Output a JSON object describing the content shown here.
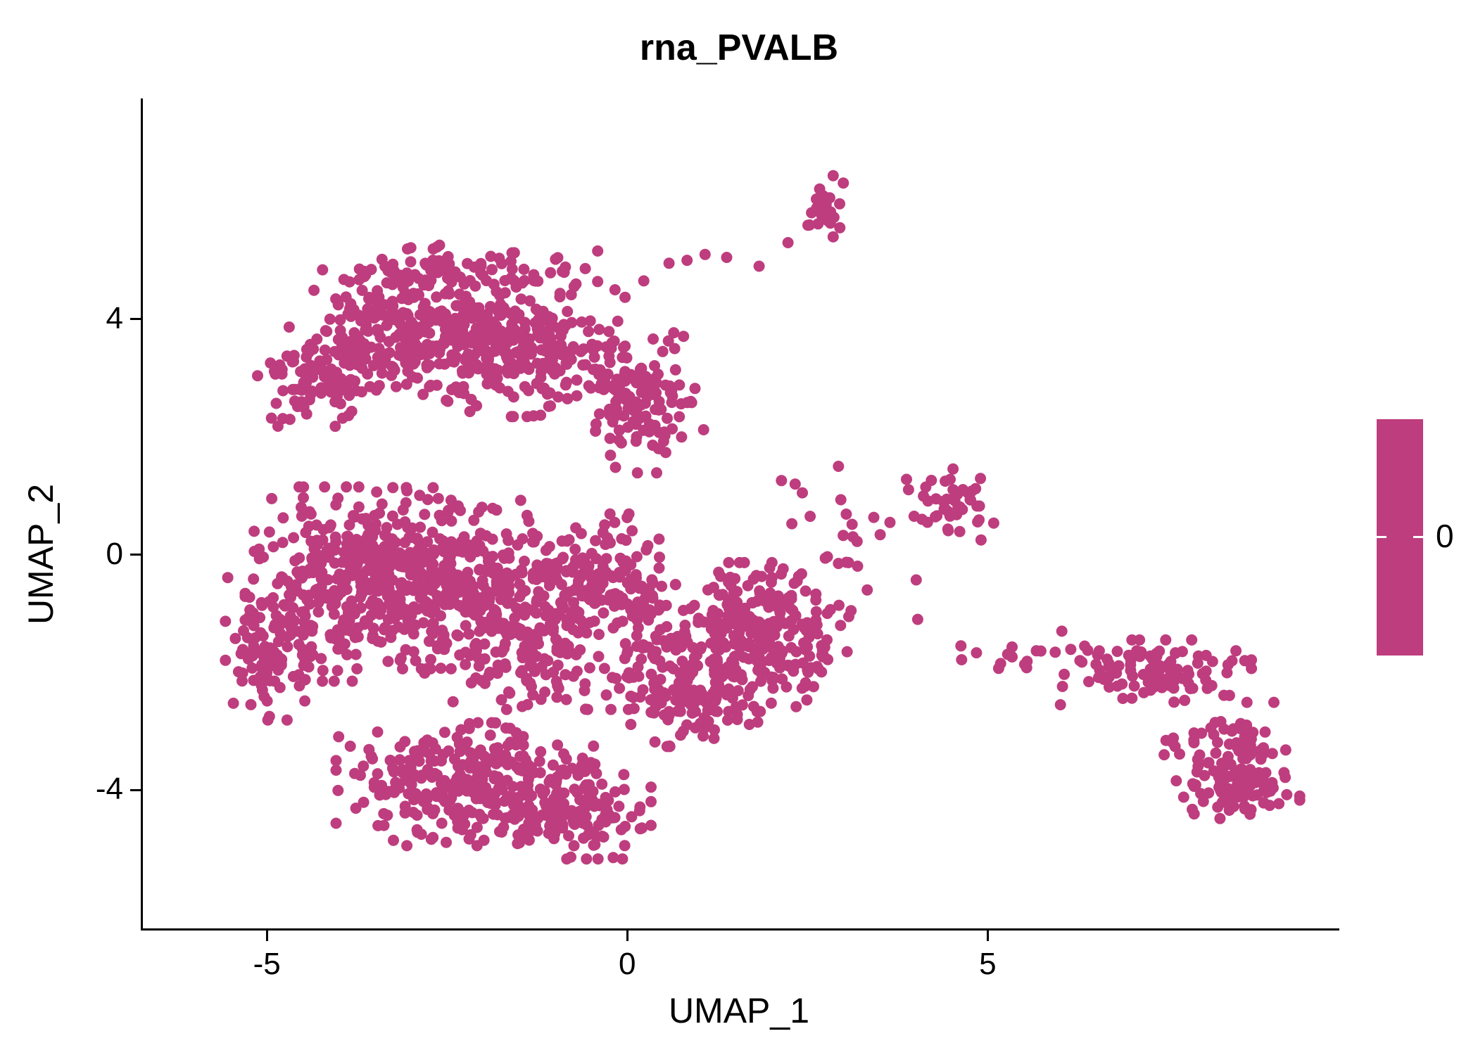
{
  "chart_data": {
    "type": "scatter",
    "title": "rna_PVALB",
    "xlabel": "UMAP_1",
    "ylabel": "UMAP_2",
    "xlim": [
      -6.75,
      9.85
    ],
    "ylim": [
      -6.35,
      7.75
    ],
    "x_ticks": [
      -5,
      0,
      5
    ],
    "y_ticks": [
      -4,
      0,
      4
    ],
    "grid": false,
    "point_color": "#BE3D7E",
    "point_radius": 8,
    "seed": 42,
    "legend": {
      "label": "0",
      "color": "#BE3D7E",
      "position": "right"
    },
    "clusters": [
      {
        "name": "upper-lobe-a",
        "cx": -3.1,
        "cy": 3.9,
        "rx": 1.5,
        "ry": 0.95,
        "n": 260
      },
      {
        "name": "upper-lobe-b",
        "cx": -1.6,
        "cy": 3.5,
        "rx": 1.4,
        "ry": 1.05,
        "n": 260
      },
      {
        "name": "upper-lobe-left-wing",
        "cx": -4.35,
        "cy": 2.95,
        "rx": 0.8,
        "ry": 0.7,
        "n": 90
      },
      {
        "name": "upper-lobe-right-arm",
        "cx": 0.15,
        "cy": 2.6,
        "rx": 0.8,
        "ry": 1.1,
        "n": 130
      },
      {
        "name": "upper-edge-sparse",
        "cx": -2.2,
        "cy": 4.85,
        "rx": 1.6,
        "ry": 0.4,
        "n": 60
      },
      {
        "name": "mid-left-a",
        "cx": -3.9,
        "cy": -0.5,
        "rx": 1.3,
        "ry": 1.5,
        "n": 330
      },
      {
        "name": "mid-left-b",
        "cx": -2.6,
        "cy": -0.4,
        "rx": 1.2,
        "ry": 1.4,
        "n": 300
      },
      {
        "name": "left-edge",
        "cx": -5.0,
        "cy": -1.6,
        "rx": 0.55,
        "ry": 1.1,
        "n": 90
      },
      {
        "name": "center-a",
        "cx": -1.3,
        "cy": -1.2,
        "rx": 1.2,
        "ry": 1.3,
        "n": 240
      },
      {
        "name": "center-b",
        "cx": -0.35,
        "cy": -0.3,
        "rx": 0.9,
        "ry": 0.9,
        "n": 110
      },
      {
        "name": "bottom-a",
        "cx": -2.2,
        "cy": -3.9,
        "rx": 1.7,
        "ry": 0.95,
        "n": 300
      },
      {
        "name": "bottom-b",
        "cx": -0.8,
        "cy": -4.4,
        "rx": 1.0,
        "ry": 0.7,
        "n": 130
      },
      {
        "name": "right-mid-lobe",
        "cx": 1.7,
        "cy": -1.4,
        "rx": 1.25,
        "ry": 1.15,
        "n": 300
      },
      {
        "name": "right-mid-lower",
        "cx": 0.9,
        "cy": -2.6,
        "rx": 0.8,
        "ry": 0.6,
        "n": 80
      },
      {
        "name": "center-right-bridge",
        "cx": 0.3,
        "cy": -1.5,
        "rx": 0.6,
        "ry": 0.9,
        "n": 60
      },
      {
        "name": "top-small-cluster",
        "cx": 2.75,
        "cy": 5.95,
        "rx": 0.35,
        "ry": 0.5,
        "n": 26
      },
      {
        "name": "right-small-cluster",
        "cx": 4.45,
        "cy": 0.85,
        "rx": 0.55,
        "ry": 0.55,
        "n": 44
      },
      {
        "name": "right-scatter",
        "cx": 3.1,
        "cy": 0.4,
        "rx": 0.9,
        "ry": 1.0,
        "n": 18
      },
      {
        "name": "right-connector",
        "cx": 5.3,
        "cy": -1.7,
        "rx": 0.9,
        "ry": 0.5,
        "n": 14
      },
      {
        "name": "far-right-band",
        "cx": 7.2,
        "cy": -2.0,
        "rx": 1.3,
        "ry": 0.5,
        "n": 110
      },
      {
        "name": "far-right-blob",
        "cx": 8.3,
        "cy": -3.5,
        "rx": 0.8,
        "ry": 0.9,
        "n": 110
      },
      {
        "name": "far-right-tail",
        "cx": 8.75,
        "cy": -4.05,
        "rx": 0.5,
        "ry": 0.35,
        "n": 40
      }
    ],
    "sparse_points": [
      [
        0.55,
        4.95
      ],
      [
        0.8,
        5.0
      ],
      [
        1.05,
        5.1
      ],
      [
        1.35,
        5.05
      ],
      [
        2.2,
        5.3
      ],
      [
        2.5,
        5.6
      ],
      [
        -0.2,
        4.5
      ],
      [
        0.2,
        4.65
      ],
      [
        1.8,
        4.9
      ],
      [
        2.9,
        1.5
      ],
      [
        2.3,
        1.2
      ],
      [
        2.4,
        1.05
      ],
      [
        3.3,
        -0.6
      ],
      [
        2.9,
        -0.15
      ],
      [
        4.0,
        -1.1
      ],
      [
        4.6,
        -1.55
      ],
      [
        6.0,
        -1.3
      ],
      [
        5.15,
        -1.85
      ]
    ]
  }
}
